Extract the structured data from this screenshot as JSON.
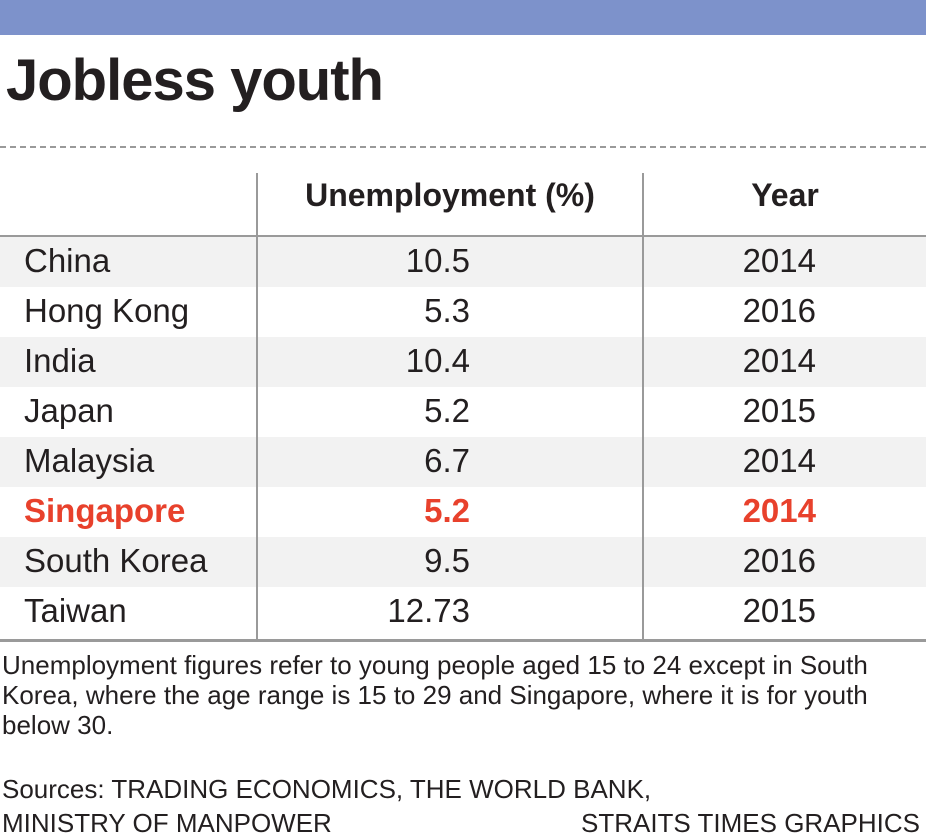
{
  "title": "Jobless youth",
  "colors": {
    "bar": "#7d92cb",
    "highlight": "#e8412c",
    "shade": "#f2f2f2",
    "rule": "#9a9a9a"
  },
  "chart_data": {
    "type": "table",
    "columns": [
      "",
      "Unemployment (%)",
      "Year"
    ],
    "rows": [
      {
        "country": "China",
        "unemployment": "10.5",
        "year": "2014",
        "shaded": true,
        "highlight": false
      },
      {
        "country": "Hong Kong",
        "unemployment": "5.3",
        "year": "2016",
        "shaded": false,
        "highlight": false
      },
      {
        "country": "India",
        "unemployment": "10.4",
        "year": "2014",
        "shaded": true,
        "highlight": false
      },
      {
        "country": "Japan",
        "unemployment": "5.2",
        "year": "2015",
        "shaded": false,
        "highlight": false
      },
      {
        "country": "Malaysia",
        "unemployment": "6.7",
        "year": "2014",
        "shaded": true,
        "highlight": false
      },
      {
        "country": "Singapore",
        "unemployment": "5.2",
        "year": "2014",
        "shaded": false,
        "highlight": true
      },
      {
        "country": "South Korea",
        "unemployment": "9.5",
        "year": "2016",
        "shaded": true,
        "highlight": false
      },
      {
        "country": "Taiwan",
        "unemployment": "12.73",
        "year": "2015",
        "shaded": false,
        "highlight": false
      }
    ]
  },
  "note": "Unemployment figures refer to young people aged 15 to 24 except in South Korea, where the age range is 15 to 29 and Singapore, where it is for youth below 30.",
  "sources": "Sources: TRADING ECONOMICS, THE WORLD BANK, MINISTRY OF MANPOWER",
  "credit": "STRAITS TIMES GRAPHICS"
}
